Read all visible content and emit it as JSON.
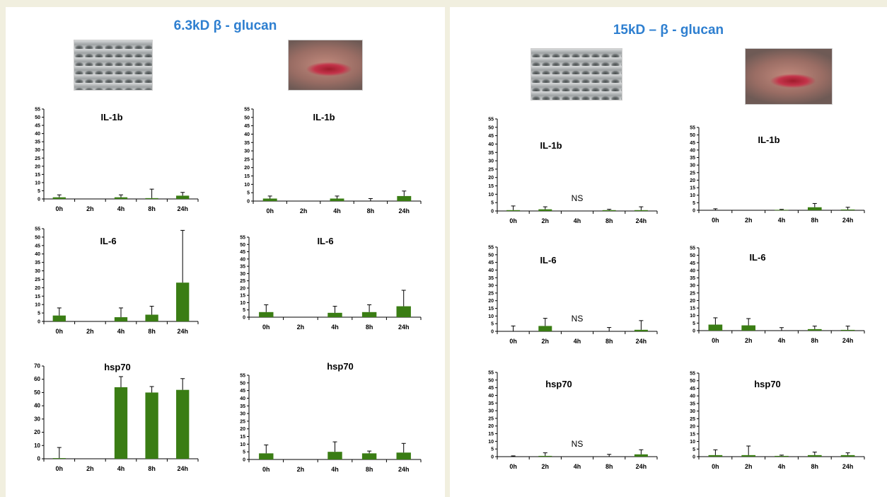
{
  "panels": [
    {
      "title": "6.3kD β - glucan"
    },
    {
      "title": "15kD – β - glucan"
    }
  ],
  "icons": {
    "fish_skin": "fish-skin-photo",
    "fish_dissection": "fish-dissection-photo"
  },
  "colors": {
    "bar": "#3a7d14",
    "title": "#2e7fd0",
    "axis": "#000000",
    "background": "#f1efdf"
  },
  "chart_data": [
    {
      "type": "bar",
      "panel": "6.3kD β - glucan",
      "tissue": "skin",
      "title": "IL-1b",
      "categories": [
        "0h",
        "2h",
        "4h",
        "8h",
        "24h"
      ],
      "values": [
        1,
        0,
        1,
        0.5,
        2
      ],
      "errors": [
        1.5,
        0,
        1.5,
        5.5,
        2
      ],
      "ylim": [
        0,
        55
      ],
      "yticks": [
        0,
        5,
        10,
        15,
        20,
        25,
        30,
        35,
        40,
        45,
        50,
        55
      ],
      "annotation": ""
    },
    {
      "type": "bar",
      "panel": "6.3kD β - glucan",
      "tissue": "gill",
      "title": "IL-1b",
      "categories": [
        "0h",
        "2h",
        "4h",
        "8h",
        "24h"
      ],
      "values": [
        1.5,
        0,
        1.5,
        0,
        3
      ],
      "errors": [
        1.5,
        0,
        1.5,
        1.5,
        3
      ],
      "ylim": [
        0,
        55
      ],
      "yticks": [
        0,
        5,
        10,
        15,
        20,
        25,
        30,
        35,
        40,
        45,
        50,
        55
      ],
      "annotation": ""
    },
    {
      "type": "bar",
      "panel": "6.3kD β - glucan",
      "tissue": "skin",
      "title": "IL-6",
      "categories": [
        "0h",
        "2h",
        "4h",
        "8h",
        "24h"
      ],
      "values": [
        3.5,
        0,
        2.5,
        4,
        23
      ],
      "errors": [
        4.5,
        0,
        5.5,
        5,
        31
      ],
      "ylim": [
        0,
        55
      ],
      "yticks": [
        0,
        5,
        10,
        15,
        20,
        25,
        30,
        35,
        40,
        45,
        50,
        55
      ],
      "annotation": ""
    },
    {
      "type": "bar",
      "panel": "6.3kD β - glucan",
      "tissue": "gill",
      "title": "IL-6",
      "categories": [
        "0h",
        "2h",
        "4h",
        "8h",
        "24h"
      ],
      "values": [
        3.5,
        0,
        3,
        3.5,
        7.5
      ],
      "errors": [
        5,
        0,
        4.5,
        5,
        11
      ],
      "ylim": [
        0,
        55
      ],
      "yticks": [
        0,
        5,
        10,
        15,
        20,
        25,
        30,
        35,
        40,
        45,
        50,
        55
      ],
      "annotation": ""
    },
    {
      "type": "bar",
      "panel": "6.3kD β - glucan",
      "tissue": "skin",
      "title": "hsp70",
      "categories": [
        "0h",
        "2h",
        "4h",
        "8h",
        "24h"
      ],
      "values": [
        0.5,
        0,
        54,
        50,
        52
      ],
      "errors": [
        8,
        0,
        8,
        4.5,
        8.5
      ],
      "ylim": [
        0,
        70
      ],
      "yticks": [
        0,
        10,
        20,
        30,
        40,
        50,
        60,
        70
      ],
      "annotation": ""
    },
    {
      "type": "bar",
      "panel": "6.3kD β - glucan",
      "tissue": "gill",
      "title": "hsp70",
      "categories": [
        "0h",
        "2h",
        "4h",
        "8h",
        "24h"
      ],
      "values": [
        4,
        0,
        5,
        4,
        4.5
      ],
      "errors": [
        5.5,
        0,
        6.5,
        1.5,
        6
      ],
      "ylim": [
        0,
        55
      ],
      "yticks": [
        0,
        5,
        10,
        15,
        20,
        25,
        30,
        35,
        40,
        45,
        50,
        55
      ],
      "annotation": ""
    },
    {
      "type": "bar",
      "panel": "15kD – β - glucan",
      "tissue": "skin",
      "title": "IL-1b",
      "categories": [
        "0h",
        "2h",
        "4h",
        "8h",
        "24h"
      ],
      "values": [
        0.5,
        1,
        0,
        0.5,
        0.5
      ],
      "errors": [
        2.5,
        1.5,
        0,
        0.5,
        2
      ],
      "ylim": [
        0,
        55
      ],
      "yticks": [
        0,
        5,
        10,
        15,
        20,
        25,
        30,
        35,
        40,
        45,
        50,
        55
      ],
      "annotation": "NS"
    },
    {
      "type": "bar",
      "panel": "15kD – β - glucan",
      "tissue": "gill",
      "title": "IL-1b",
      "categories": [
        "0h",
        "2h",
        "4h",
        "8h",
        "24h"
      ],
      "values": [
        0,
        0,
        0.3,
        2,
        0.5
      ],
      "errors": [
        1,
        0,
        0.3,
        2.5,
        1.5
      ],
      "ylim": [
        0,
        55
      ],
      "yticks": [
        0,
        5,
        10,
        15,
        20,
        25,
        30,
        35,
        40,
        45,
        50,
        55
      ],
      "annotation": ""
    },
    {
      "type": "bar",
      "panel": "15kD – β - glucan",
      "tissue": "skin",
      "title": "IL-6",
      "categories": [
        "0h",
        "2h",
        "4h",
        "8h",
        "24h"
      ],
      "values": [
        0,
        3.5,
        0,
        0,
        1
      ],
      "errors": [
        3.5,
        5,
        0,
        2.5,
        6
      ],
      "ylim": [
        0,
        55
      ],
      "yticks": [
        0,
        5,
        10,
        15,
        20,
        25,
        30,
        35,
        40,
        45,
        50,
        55
      ],
      "annotation": "NS"
    },
    {
      "type": "bar",
      "panel": "15kD – β - glucan",
      "tissue": "gill",
      "title": "IL-6",
      "categories": [
        "0h",
        "2h",
        "4h",
        "8h",
        "24h"
      ],
      "values": [
        4,
        3.5,
        0,
        1,
        0.5
      ],
      "errors": [
        4.5,
        4.5,
        2,
        2,
        2.5
      ],
      "ylim": [
        0,
        55
      ],
      "yticks": [
        0,
        5,
        10,
        15,
        20,
        25,
        30,
        35,
        40,
        45,
        50,
        55
      ],
      "annotation": ""
    },
    {
      "type": "bar",
      "panel": "15kD – β - glucan",
      "tissue": "skin",
      "title": "hsp70",
      "categories": [
        "0h",
        "2h",
        "4h",
        "8h",
        "24h"
      ],
      "values": [
        0,
        0.5,
        0,
        0,
        1.5
      ],
      "errors": [
        0.5,
        2,
        0,
        1.5,
        3
      ],
      "ylim": [
        0,
        55
      ],
      "yticks": [
        0,
        5,
        10,
        15,
        20,
        25,
        30,
        35,
        40,
        45,
        50,
        55
      ],
      "annotation": "NS"
    },
    {
      "type": "bar",
      "panel": "15kD – β - glucan",
      "tissue": "gill",
      "title": "hsp70",
      "categories": [
        "0h",
        "2h",
        "4h",
        "8h",
        "24h"
      ],
      "values": [
        1,
        1,
        0.5,
        1,
        1
      ],
      "errors": [
        3.5,
        6,
        0.5,
        2,
        1.5
      ],
      "ylim": [
        0,
        55
      ],
      "yticks": [
        0,
        5,
        10,
        15,
        20,
        25,
        30,
        35,
        40,
        45,
        50,
        55
      ],
      "annotation": ""
    }
  ]
}
